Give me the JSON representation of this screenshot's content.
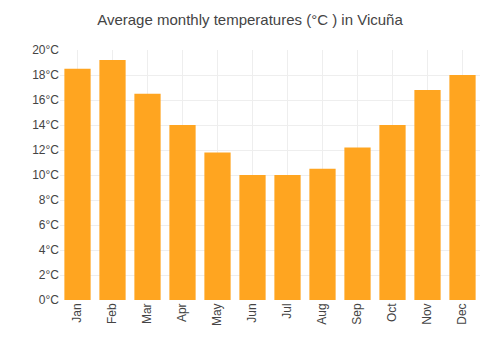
{
  "chart_data": {
    "type": "bar",
    "title": "Average monthly temperatures (°C ) in Vicuña",
    "categories": [
      "Jan",
      "Feb",
      "Mar",
      "Apr",
      "May",
      "Jun",
      "Jul",
      "Aug",
      "Sep",
      "Oct",
      "Nov",
      "Dec"
    ],
    "values": [
      18.5,
      19.2,
      16.5,
      14.0,
      11.8,
      10.0,
      10.0,
      10.5,
      12.2,
      14.0,
      16.8,
      18.0
    ],
    "color": "#FFA520",
    "ylim": [
      0,
      20
    ],
    "yticks": [
      {
        "value": 0,
        "label": "0°C"
      },
      {
        "value": 2,
        "label": "2°C"
      },
      {
        "value": 4,
        "label": "4°C"
      },
      {
        "value": 6,
        "label": "6°C"
      },
      {
        "value": 8,
        "label": "8°C"
      },
      {
        "value": 10,
        "label": "10°C"
      },
      {
        "value": 12,
        "label": "12°C"
      },
      {
        "value": 14,
        "label": "14°C"
      },
      {
        "value": 16,
        "label": "16°C"
      },
      {
        "value": 18,
        "label": "18°C"
      },
      {
        "value": 20,
        "label": "20°C"
      }
    ],
    "grid": true
  }
}
